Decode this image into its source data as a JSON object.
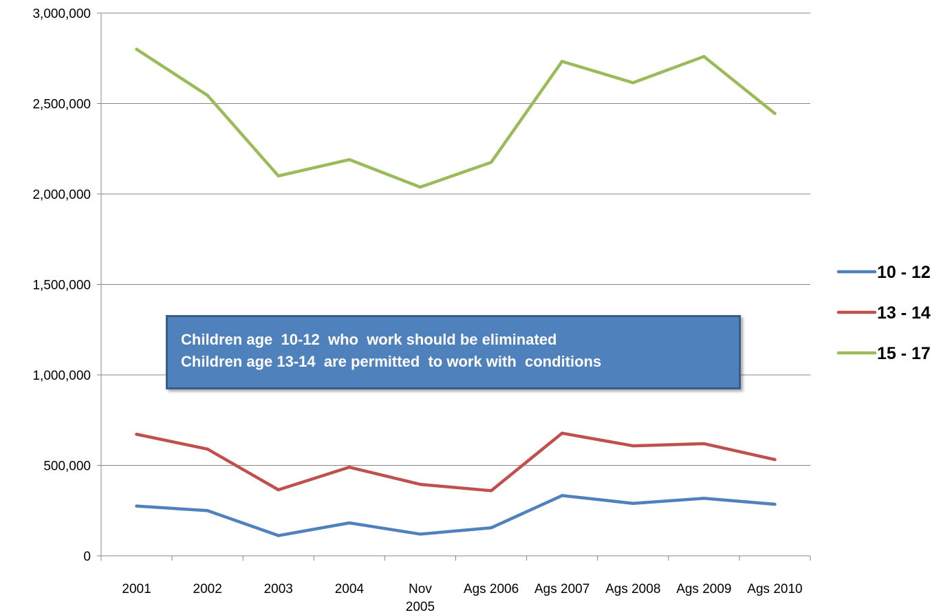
{
  "chart_data": {
    "type": "line",
    "categories": [
      "2001",
      "2002",
      "2003",
      "2004",
      "Nov 2005",
      "Ags 2006",
      "Ags 2007",
      "Ags 2008",
      "Ags 2009",
      "Ags 2010"
    ],
    "category_lines": [
      [
        "2001"
      ],
      [
        "2002"
      ],
      [
        "2003"
      ],
      [
        "2004"
      ],
      [
        "Nov",
        "2005"
      ],
      [
        "Ags 2006"
      ],
      [
        "Ags 2007"
      ],
      [
        "Ags 2008"
      ],
      [
        "Ags 2009"
      ],
      [
        "Ags 2010"
      ]
    ],
    "series": [
      {
        "name": "10 - 12",
        "color": "#4f81bd",
        "values": [
          275000,
          250000,
          112000,
          182000,
          120000,
          155000,
          333000,
          290000,
          318000,
          285000
        ]
      },
      {
        "name": "13 - 14",
        "color": "#c0504d",
        "values": [
          672000,
          590000,
          365000,
          490000,
          395000,
          360000,
          678000,
          608000,
          620000,
          532000
        ]
      },
      {
        "name": "15 - 17",
        "color": "#9bbb59",
        "values": [
          2800000,
          2545000,
          2100000,
          2190000,
          2038000,
          2175000,
          2733000,
          2615000,
          2760000,
          2445000
        ]
      }
    ],
    "ylim": [
      0,
      3000000
    ],
    "yticks": [
      0,
      500000,
      1000000,
      1500000,
      2000000,
      2500000,
      3000000
    ],
    "ytick_labels": [
      "0",
      "500,000",
      "1,000,000",
      "1,500,000",
      "2,000,000",
      "2,500,000",
      "3,000,000"
    ],
    "grid": true,
    "legend_position": "right",
    "annotations": [
      "Children age  10-12  who  work should be eliminated",
      "Children age 13-14  are permitted  to work with  conditions"
    ],
    "title": "",
    "xlabel": "",
    "ylabel": ""
  }
}
